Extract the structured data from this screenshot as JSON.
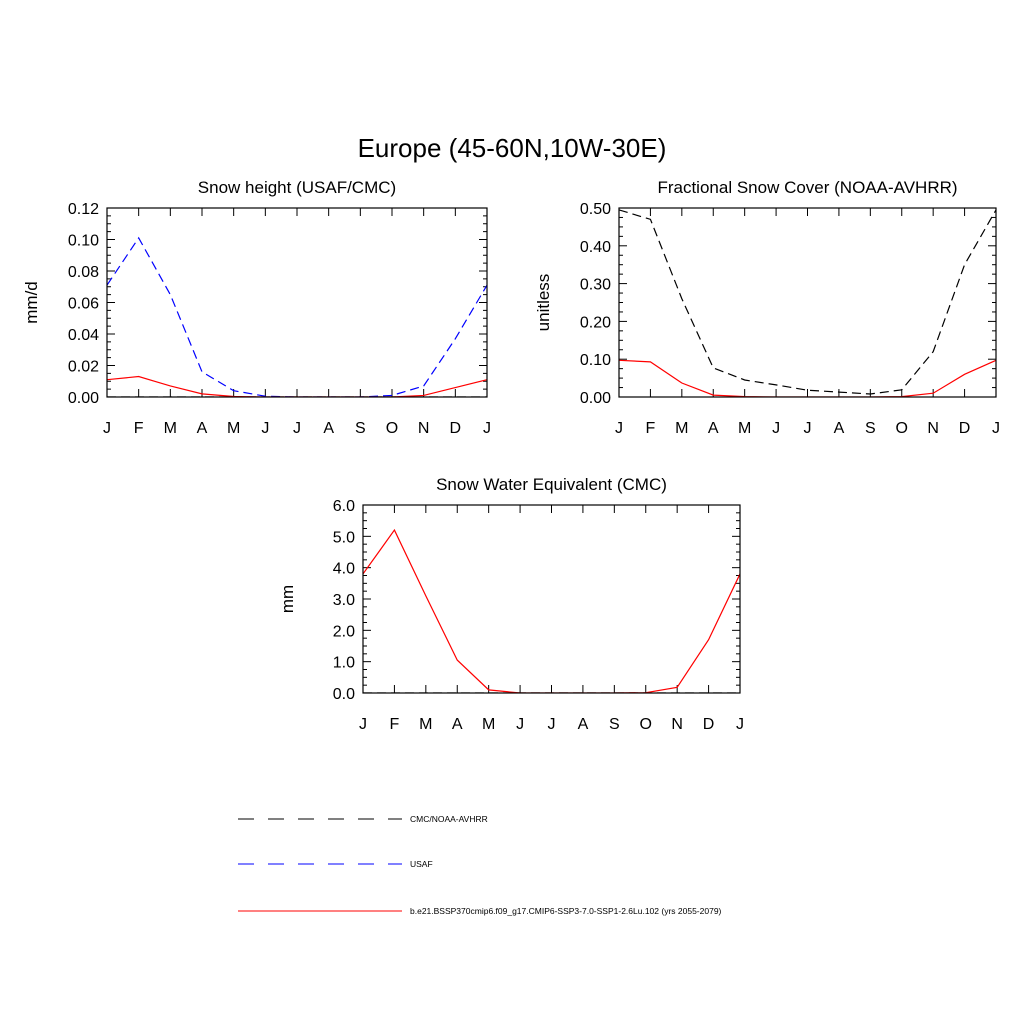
{
  "title": "Europe (45-60N,10W-30E)",
  "months": [
    "J",
    "F",
    "M",
    "A",
    "M",
    "J",
    "J",
    "A",
    "S",
    "O",
    "N",
    "D",
    "J"
  ],
  "colors": {
    "obs": "#000000",
    "usaf": "#0000ff",
    "model": "#ff0000"
  },
  "legend": [
    {
      "label": "CMC/NOAA-AVHRR",
      "color": "#000000",
      "style": "dashed"
    },
    {
      "label": "USAF",
      "color": "#0000ff",
      "style": "dashed"
    },
    {
      "label": "b.e21.BSSP370cmip6.f09_g17.CMIP6-SSP3-7.0-SSP1-2.6Lu.102 (yrs 2055-2079)",
      "color": "#ff0000",
      "style": "solid"
    }
  ],
  "chart_data": [
    {
      "type": "line",
      "title": "Snow height (USAF/CMC)",
      "ylabel": "mm/d",
      "ylim": [
        0,
        0.12
      ],
      "yticks": [
        "0.00",
        "0.02",
        "0.04",
        "0.06",
        "0.08",
        "0.10",
        "0.12"
      ],
      "x": [
        "J",
        "F",
        "M",
        "A",
        "M",
        "J",
        "J",
        "A",
        "S",
        "O",
        "N",
        "D",
        "J"
      ],
      "series": [
        {
          "name": "CMC/NOAA-AVHRR",
          "color": "#000000",
          "style": "dashed",
          "values": [
            0,
            0,
            0,
            0,
            0,
            0,
            0,
            0,
            0,
            0,
            0,
            0,
            0
          ]
        },
        {
          "name": "USAF",
          "color": "#0000ff",
          "style": "dashed",
          "values": [
            0.071,
            0.101,
            0.065,
            0.016,
            0.004,
            0.0005,
            0,
            0,
            0,
            0.001,
            0.007,
            0.037,
            0.071
          ]
        },
        {
          "name": "b.e21.BSSP370cmip6.f09_g17.CMIP6-SSP3-7.0-SSP1-2.6Lu.102 (yrs 2055-2079)",
          "color": "#ff0000",
          "style": "solid",
          "values": [
            0.011,
            0.013,
            0.007,
            0.002,
            0.0003,
            0,
            0,
            0,
            0,
            0,
            0.001,
            0.006,
            0.011
          ]
        }
      ]
    },
    {
      "type": "line",
      "title": "Fractional Snow Cover (NOAA-AVHRR)",
      "ylabel": "unitless",
      "ylim": [
        0,
        0.5
      ],
      "yticks": [
        "0.00",
        "0.10",
        "0.20",
        "0.30",
        "0.40",
        "0.50"
      ],
      "x": [
        "J",
        "F",
        "M",
        "A",
        "M",
        "J",
        "J",
        "A",
        "S",
        "O",
        "N",
        "D",
        "J"
      ],
      "series": [
        {
          "name": "CMC/NOAA-AVHRR",
          "color": "#000000",
          "style": "dashed",
          "values": [
            0.495,
            0.47,
            0.26,
            0.077,
            0.045,
            0.032,
            0.018,
            0.013,
            0.008,
            0.019,
            0.12,
            0.35,
            0.495
          ]
        },
        {
          "name": "b.e21.BSSP370cmip6.f09_g17.CMIP6-SSP3-7.0-SSP1-2.6Lu.102 (yrs 2055-2079)",
          "color": "#ff0000",
          "style": "solid",
          "values": [
            0.097,
            0.093,
            0.037,
            0.005,
            0.001,
            0,
            0,
            0,
            0,
            0.001,
            0.01,
            0.06,
            0.097
          ]
        }
      ]
    },
    {
      "type": "line",
      "title": "Snow Water Equivalent (CMC)",
      "ylabel": "mm",
      "ylim": [
        0,
        6
      ],
      "yticks": [
        "0.0",
        "1.0",
        "2.0",
        "3.0",
        "4.0",
        "5.0",
        "6.0"
      ],
      "x": [
        "J",
        "F",
        "M",
        "A",
        "M",
        "J",
        "J",
        "A",
        "S",
        "O",
        "N",
        "D",
        "J"
      ],
      "series": [
        {
          "name": "CMC/NOAA-AVHRR",
          "color": "#000000",
          "style": "dashed",
          "values": [
            0,
            0,
            0,
            0,
            0,
            0,
            0,
            0,
            0,
            0,
            0,
            0,
            0
          ]
        },
        {
          "name": "b.e21.BSSP370cmip6.f09_g17.CMIP6-SSP3-7.0-SSP1-2.6Lu.102 (yrs 2055-2079)",
          "color": "#ff0000",
          "style": "solid",
          "values": [
            3.8,
            5.2,
            3.1,
            1.05,
            0.1,
            0,
            0,
            0,
            0,
            0.01,
            0.18,
            1.7,
            3.8
          ]
        }
      ]
    }
  ]
}
